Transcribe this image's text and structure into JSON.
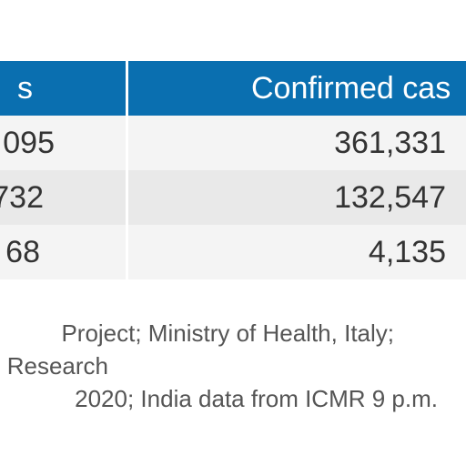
{
  "table": {
    "header": {
      "left": "s",
      "right": "Confirmed cas"
    },
    "rows": [
      {
        "left": "095",
        "right": "361,331"
      },
      {
        "left": "732",
        "right": "132,547"
      },
      {
        "left": "68",
        "right": "4,135"
      }
    ]
  },
  "source": {
    "lines": [
      "Project; Ministry of Health, Italy;",
      "Research",
      "2020; India data from ICMR 9 p.m."
    ]
  },
  "colors": {
    "header_bg": "#0a6fb0",
    "row_light": "#f4f4f4",
    "row_dark": "#e9e9e9"
  }
}
